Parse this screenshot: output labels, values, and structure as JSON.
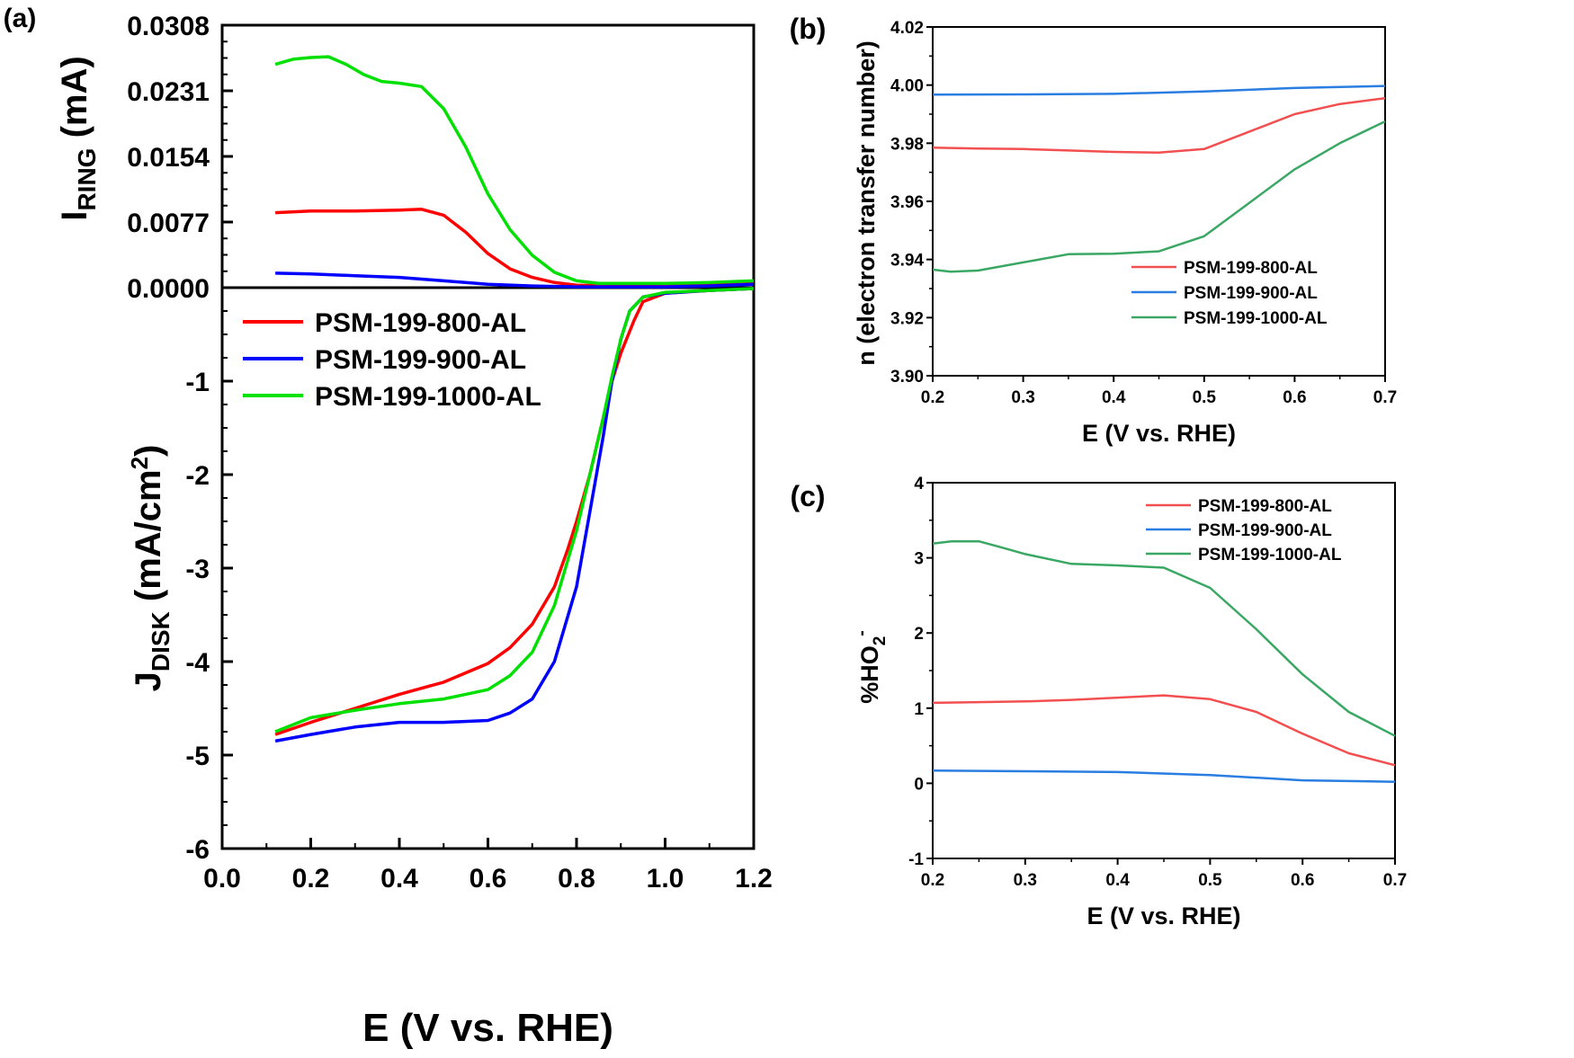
{
  "chart_data": [
    {
      "panel": "(a)",
      "type": "line",
      "xlabel": "E (V vs. RHE)",
      "xlim": [
        0.0,
        1.2
      ],
      "xticks": [
        "0.0",
        "0.2",
        "0.4",
        "0.6",
        "0.8",
        "1.0",
        "1.2"
      ],
      "subplots": [
        {
          "name": "ring",
          "ylabel": "I",
          "ylabel_sub": "RING",
          "ylabel_rest": " (mA)",
          "ylim": [
            0.0,
            0.0308
          ],
          "yticks": [
            "0.0000",
            "0.0077",
            "0.0154",
            "0.0231",
            "0.0308"
          ],
          "series": [
            {
              "name": "PSM-199-800-AL",
              "color": "#ff0000",
              "x": [
                0.12,
                0.2,
                0.3,
                0.4,
                0.45,
                0.5,
                0.55,
                0.6,
                0.65,
                0.7,
                0.75,
                0.8,
                0.9,
                1.0,
                1.1,
                1.2
              ],
              "y": [
                0.0088,
                0.009,
                0.009,
                0.0091,
                0.0092,
                0.0085,
                0.0065,
                0.004,
                0.0022,
                0.0012,
                0.0006,
                0.0003,
                0.0002,
                0.0002,
                0.0003,
                0.0005
              ]
            },
            {
              "name": "PSM-199-900-AL",
              "color": "#0000ff",
              "x": [
                0.12,
                0.2,
                0.3,
                0.4,
                0.5,
                0.6,
                0.7,
                0.8,
                0.9,
                1.0,
                1.1,
                1.2
              ],
              "y": [
                0.0017,
                0.0016,
                0.0014,
                0.0012,
                0.0008,
                0.0004,
                0.0002,
                0.0001,
                0.0001,
                0.0001,
                0.0002,
                0.0004
              ]
            },
            {
              "name": "PSM-199-1000-AL",
              "color": "#00e000",
              "x": [
                0.12,
                0.16,
                0.2,
                0.24,
                0.28,
                0.32,
                0.36,
                0.4,
                0.45,
                0.5,
                0.55,
                0.6,
                0.65,
                0.7,
                0.75,
                0.8,
                0.85,
                0.9,
                1.0,
                1.1,
                1.2
              ],
              "y": [
                0.0262,
                0.0268,
                0.027,
                0.0271,
                0.0262,
                0.025,
                0.0242,
                0.024,
                0.0236,
                0.021,
                0.0165,
                0.011,
                0.0068,
                0.0038,
                0.0018,
                0.0008,
                0.0005,
                0.0005,
                0.0005,
                0.0006,
                0.0008
              ]
            }
          ]
        },
        {
          "name": "disk",
          "ylabel": "J",
          "ylabel_sub": "DISK",
          "ylabel_rest": " (mA/cm",
          "ylabel_sup": "2",
          "ylabel_end": ")",
          "ylim": [
            -6,
            0
          ],
          "yticks": [
            "-6",
            "-5",
            "-4",
            "-3",
            "-2",
            "-1"
          ],
          "series": [
            {
              "name": "PSM-199-800-AL",
              "color": "#ff0000",
              "x": [
                0.12,
                0.2,
                0.3,
                0.4,
                0.5,
                0.6,
                0.65,
                0.7,
                0.75,
                0.78,
                0.8,
                0.83,
                0.86,
                0.88,
                0.9,
                0.93,
                0.95,
                1.0,
                1.1,
                1.2
              ],
              "y": [
                -4.78,
                -4.65,
                -4.5,
                -4.35,
                -4.22,
                -4.02,
                -3.85,
                -3.6,
                -3.2,
                -2.8,
                -2.5,
                -2.0,
                -1.4,
                -1.0,
                -0.7,
                -0.35,
                -0.15,
                -0.06,
                -0.03,
                -0.01
              ]
            },
            {
              "name": "PSM-199-900-AL",
              "color": "#0000ff",
              "x": [
                0.12,
                0.2,
                0.3,
                0.4,
                0.5,
                0.6,
                0.65,
                0.7,
                0.75,
                0.8,
                0.83,
                0.86,
                0.88,
                0.9,
                0.92,
                0.95,
                1.0,
                1.1,
                1.2
              ],
              "y": [
                -4.85,
                -4.78,
                -4.7,
                -4.65,
                -4.65,
                -4.63,
                -4.55,
                -4.4,
                -4.0,
                -3.2,
                -2.4,
                -1.6,
                -1.0,
                -0.55,
                -0.25,
                -0.1,
                -0.06,
                -0.03,
                -0.01
              ]
            },
            {
              "name": "PSM-199-1000-AL",
              "color": "#00e000",
              "x": [
                0.12,
                0.2,
                0.3,
                0.4,
                0.5,
                0.6,
                0.65,
                0.7,
                0.75,
                0.8,
                0.83,
                0.86,
                0.88,
                0.9,
                0.92,
                0.95,
                1.0,
                1.1,
                1.2
              ],
              "y": [
                -4.75,
                -4.6,
                -4.52,
                -4.45,
                -4.4,
                -4.3,
                -4.15,
                -3.9,
                -3.4,
                -2.6,
                -2.0,
                -1.4,
                -0.95,
                -0.55,
                -0.25,
                -0.1,
                -0.05,
                -0.03,
                -0.01
              ]
            }
          ]
        }
      ],
      "legend": [
        "PSM-199-800-AL",
        "PSM-199-900-AL",
        "PSM-199-1000-AL"
      ],
      "legend_position": "upper-left of lower subplot"
    },
    {
      "panel": "(b)",
      "type": "line",
      "xlabel": "E (V vs. RHE)",
      "ylabel": "n (electron transfer number)",
      "xlim": [
        0.2,
        0.7
      ],
      "ylim": [
        3.9,
        4.02
      ],
      "xticks": [
        "0.2",
        "0.3",
        "0.4",
        "0.5",
        "0.6",
        "0.7"
      ],
      "yticks": [
        "3.90",
        "3.92",
        "3.94",
        "3.96",
        "3.98",
        "4.00",
        "4.02"
      ],
      "legend_position": "lower-right",
      "series": [
        {
          "name": "PSM-199-800-AL",
          "color": "#f25050",
          "x": [
            0.2,
            0.25,
            0.3,
            0.35,
            0.4,
            0.45,
            0.5,
            0.55,
            0.6,
            0.65,
            0.7
          ],
          "y": [
            3.9785,
            3.9782,
            3.978,
            3.9775,
            3.977,
            3.9768,
            3.978,
            3.984,
            3.99,
            3.9935,
            3.9955
          ]
        },
        {
          "name": "PSM-199-900-AL",
          "color": "#2a7de1",
          "x": [
            0.2,
            0.3,
            0.4,
            0.5,
            0.6,
            0.7
          ],
          "y": [
            3.9967,
            3.9968,
            3.997,
            3.9978,
            3.999,
            3.9997
          ]
        },
        {
          "name": "PSM-199-1000-AL",
          "color": "#3aa864",
          "x": [
            0.2,
            0.22,
            0.25,
            0.3,
            0.35,
            0.4,
            0.45,
            0.5,
            0.55,
            0.6,
            0.65,
            0.7
          ],
          "y": [
            3.9365,
            3.9358,
            3.9362,
            3.939,
            3.9418,
            3.942,
            3.9428,
            3.948,
            3.9595,
            3.971,
            3.98,
            3.9875
          ]
        }
      ]
    },
    {
      "panel": "(c)",
      "type": "line",
      "xlabel": "E (V vs. RHE)",
      "ylabel": "%HO",
      "ylabel_sub": "2",
      "ylabel_sup": "-",
      "xlim": [
        0.2,
        0.7
      ],
      "ylim": [
        -1,
        4
      ],
      "xticks": [
        "0.2",
        "0.3",
        "0.4",
        "0.5",
        "0.6",
        "0.7"
      ],
      "yticks": [
        "-1",
        "0",
        "1",
        "2",
        "3",
        "4"
      ],
      "legend_position": "upper-right",
      "series": [
        {
          "name": "PSM-199-800-AL",
          "color": "#f25050",
          "x": [
            0.2,
            0.25,
            0.3,
            0.35,
            0.4,
            0.45,
            0.5,
            0.55,
            0.6,
            0.65,
            0.7
          ],
          "y": [
            1.07,
            1.08,
            1.09,
            1.11,
            1.14,
            1.17,
            1.12,
            0.95,
            0.66,
            0.4,
            0.24
          ]
        },
        {
          "name": "PSM-199-900-AL",
          "color": "#2a7de1",
          "x": [
            0.2,
            0.3,
            0.4,
            0.5,
            0.6,
            0.7
          ],
          "y": [
            0.17,
            0.16,
            0.15,
            0.11,
            0.04,
            0.02
          ]
        },
        {
          "name": "PSM-199-1000-AL",
          "color": "#3aa864",
          "x": [
            0.2,
            0.22,
            0.25,
            0.28,
            0.3,
            0.35,
            0.4,
            0.45,
            0.5,
            0.55,
            0.6,
            0.65,
            0.7
          ],
          "y": [
            3.19,
            3.22,
            3.22,
            3.12,
            3.05,
            2.92,
            2.9,
            2.87,
            2.6,
            2.05,
            1.45,
            0.95,
            0.63
          ]
        }
      ]
    }
  ]
}
